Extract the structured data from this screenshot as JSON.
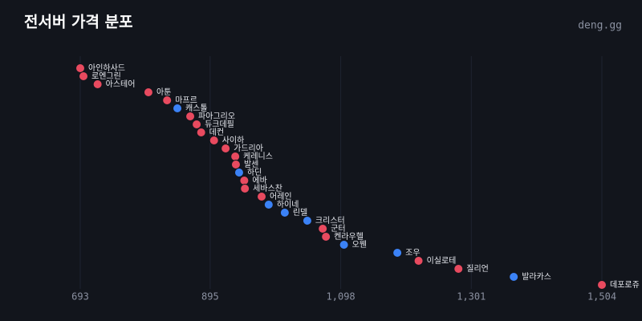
{
  "chart_data": {
    "type": "dot",
    "title": "전서버 가격 분포",
    "source": "deng.gg",
    "categories": [
      "아인하사드",
      "로엔그린",
      "아스테어",
      "아툰",
      "마프르",
      "캐스톨",
      "파아그리오",
      "듀크데필",
      "데컨",
      "사이하",
      "가드리아",
      "케레니스",
      "발센",
      "하딘",
      "에바",
      "세바스찬",
      "어레인",
      "하이네",
      "린델",
      "크리스터",
      "군터",
      "켄라우헬",
      "오웬",
      "조우",
      "이실로테",
      "질리언",
      "발라카스",
      "데포로쥬"
    ],
    "values": [
      693,
      698,
      720,
      799,
      828,
      844,
      864,
      874,
      881,
      901,
      919,
      934,
      935,
      940,
      948,
      949,
      975,
      986,
      1011,
      1046,
      1070,
      1075,
      1103,
      1186,
      1219,
      1281,
      1367,
      1504
    ],
    "colors": [
      "#e84a5f",
      "#e84a5f",
      "#e84a5f",
      "#e84a5f",
      "#e84a5f",
      "#3b82f6",
      "#e84a5f",
      "#e84a5f",
      "#e84a5f",
      "#e84a5f",
      "#e84a5f",
      "#e84a5f",
      "#e84a5f",
      "#3b82f6",
      "#e84a5f",
      "#e84a5f",
      "#e84a5f",
      "#3b82f6",
      "#3b82f6",
      "#3b82f6",
      "#e84a5f",
      "#e84a5f",
      "#3b82f6",
      "#3b82f6",
      "#e84a5f",
      "#e84a5f",
      "#3b82f6",
      "#e84a5f"
    ],
    "xlim": [
      693,
      1504
    ],
    "xticks": [
      693,
      895,
      {
        "value": 1098,
        "label": "1,098"
      },
      {
        "value": 1301,
        "label": "1,301"
      },
      {
        "value": 1504,
        "label": "1,504"
      }
    ],
    "grid": true
  }
}
